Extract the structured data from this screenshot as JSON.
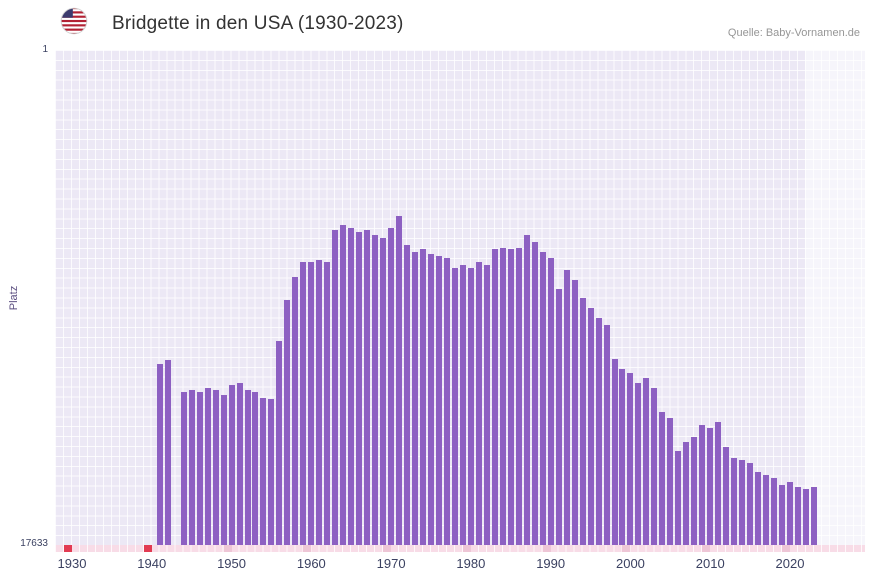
{
  "header": {
    "title": "Bridgette in den USA (1930-2023)",
    "source": "Quelle: Baby-Vornamen.de",
    "flag_icon": "us-flag-icon"
  },
  "chart_data": {
    "type": "bar",
    "title": "Bridgette in den USA (1930-2023)",
    "xlabel": "",
    "ylabel": "Platz",
    "y_axis": {
      "top_label": "1",
      "bottom_label": "17633",
      "min": 1,
      "max": 17633,
      "inverted": true
    },
    "x_range": [
      1930,
      2023
    ],
    "x_ticks": [
      1930,
      1940,
      1950,
      1960,
      1970,
      1980,
      1990,
      2000,
      2010,
      2020
    ],
    "bar_color": "#8d60c2",
    "plot_bg": "#ece8f5",
    "grid": true,
    "legend": "none",
    "ranks": [
      null,
      null,
      null,
      null,
      null,
      null,
      null,
      null,
      null,
      null,
      null,
      11200,
      11050,
      null,
      12200,
      12100,
      12200,
      12050,
      12100,
      12300,
      11950,
      11850,
      12100,
      12200,
      12400,
      12450,
      10350,
      8900,
      8100,
      7550,
      7550,
      7480,
      7550,
      6400,
      6250,
      6350,
      6500,
      6400,
      6600,
      6700,
      6350,
      5900,
      6950,
      7200,
      7100,
      7250,
      7350,
      7400,
      7750,
      7650,
      7750,
      7550,
      7650,
      7100,
      7050,
      7100,
      7050,
      6600,
      6850,
      7200,
      7400,
      8500,
      7850,
      8200,
      8850,
      9200,
      9550,
      9800,
      11000,
      11350,
      11500,
      11850,
      11700,
      12050,
      12900,
      13100,
      14300,
      13950,
      13800,
      13350,
      13450,
      13250,
      14150,
      14550,
      14600,
      14700,
      15050,
      15150,
      15250,
      15500,
      15400,
      15550,
      15650,
      15550
    ],
    "axis_band": {
      "band_color": "#f8dce7",
      "red_marker_color": "#e23b52",
      "red_marker_years": [
        1930,
        1940
      ],
      "decade_marker_color": "#eec6d6",
      "decade_marker_years": [
        1950,
        1960,
        1970,
        1980,
        1990,
        2000,
        2010,
        2020
      ]
    }
  }
}
